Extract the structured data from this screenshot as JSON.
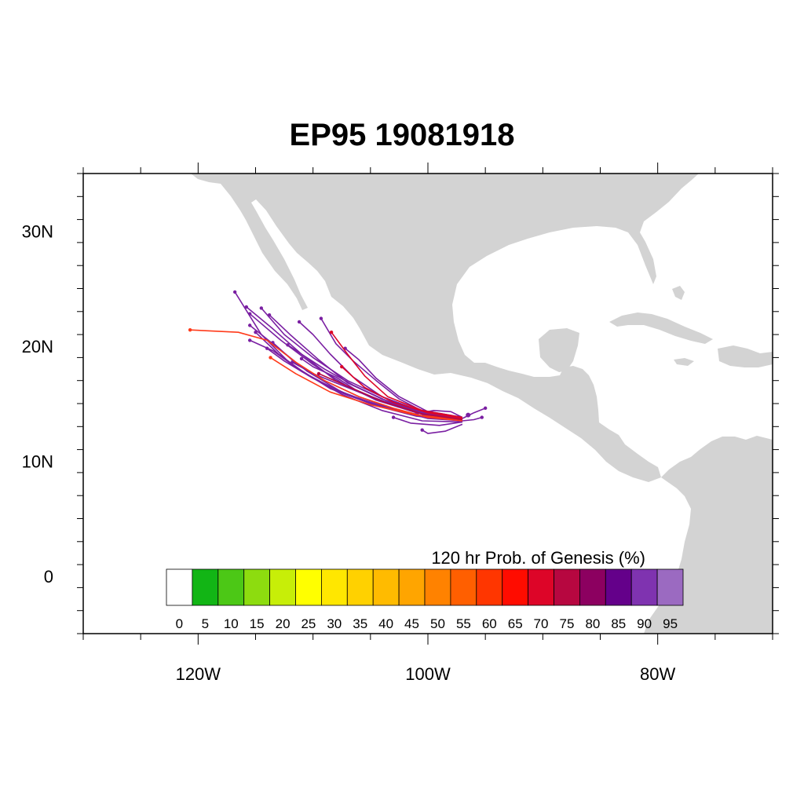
{
  "title": "EP95 19081918",
  "colors": {
    "land": "#d3d3d3",
    "ocean": "#ffffff",
    "frame": "#000000"
  },
  "axes": {
    "lon_range": [
      -130,
      -70
    ],
    "lat_range": [
      -5,
      35
    ],
    "lat_ticks": [
      {
        "value": 30,
        "label": "30N"
      },
      {
        "value": 20,
        "label": "20N"
      },
      {
        "value": 10,
        "label": "10N"
      },
      {
        "value": 0,
        "label": "0"
      }
    ],
    "lon_ticks": [
      {
        "value": -120,
        "label": "120W"
      },
      {
        "value": -100,
        "label": "100W"
      },
      {
        "value": -80,
        "label": "80W"
      }
    ]
  },
  "colorbar": {
    "title": "120 hr Prob. of Genesis (%)",
    "labels": [
      "0",
      "5",
      "10",
      "15",
      "20",
      "25",
      "30",
      "35",
      "40",
      "45",
      "50",
      "55",
      "60",
      "65",
      "70",
      "75",
      "80",
      "85",
      "90",
      "95"
    ],
    "colors": [
      "#ffffff",
      "#12b515",
      "#4cc816",
      "#8ddc0f",
      "#c7ee08",
      "#ffff00",
      "#ffe700",
      "#ffd100",
      "#ffbb00",
      "#ffa500",
      "#ff8200",
      "#ff5f00",
      "#ff3600",
      "#ff0c00",
      "#dd0528",
      "#b70740",
      "#8c0060",
      "#64008a",
      "#7f33b0",
      "#9b6ac1"
    ]
  },
  "tracks": {
    "start": [
      -96.5,
      14.0
    ],
    "members": [
      {
        "color": "#7a1fa2",
        "points": [
          [
            -97,
            13.8
          ],
          [
            -101,
            14.5
          ],
          [
            -104,
            15.6
          ],
          [
            -107,
            17.0
          ],
          [
            -110,
            19.0
          ],
          [
            -112.5,
            21.0
          ],
          [
            -114.5,
            23.3
          ]
        ]
      },
      {
        "color": "#7a1fa2",
        "points": [
          [
            -97,
            13.7
          ],
          [
            -100.5,
            14.2
          ],
          [
            -104,
            15.4
          ],
          [
            -107,
            16.8
          ],
          [
            -109.5,
            18.8
          ],
          [
            -112,
            21.0
          ],
          [
            -113.8,
            22.7
          ]
        ]
      },
      {
        "color": "#7a1fa2",
        "points": [
          [
            -97,
            13.6
          ],
          [
            -101,
            14.2
          ],
          [
            -104.5,
            15.3
          ],
          [
            -108,
            17.0
          ],
          [
            -111,
            19.3
          ],
          [
            -113.5,
            21.5
          ],
          [
            -115.8,
            23.4
          ]
        ]
      },
      {
        "color": "#7a1fa2",
        "points": [
          [
            -97,
            13.6
          ],
          [
            -100,
            14.0
          ],
          [
            -103.5,
            15.0
          ],
          [
            -107,
            16.5
          ],
          [
            -110,
            18.4
          ],
          [
            -112.8,
            20.5
          ],
          [
            -115.5,
            22.8
          ]
        ]
      },
      {
        "color": "#7a1fa2",
        "points": [
          [
            -97,
            13.5
          ],
          [
            -101,
            14.0
          ],
          [
            -105,
            15.0
          ],
          [
            -108.5,
            16.3
          ],
          [
            -112,
            18.5
          ],
          [
            -114.5,
            21.0
          ],
          [
            -116.8,
            24.7
          ]
        ]
      },
      {
        "color": "#7a1fa2",
        "points": [
          [
            -97,
            13.6
          ],
          [
            -100,
            13.9
          ],
          [
            -103,
            14.9
          ],
          [
            -106,
            16.0
          ],
          [
            -108,
            17.3
          ],
          [
            -110,
            18.2
          ],
          [
            -111,
            18.9
          ]
        ]
      },
      {
        "color": "#7a1fa2",
        "points": [
          [
            -97,
            13.5
          ],
          [
            -101,
            13.9
          ],
          [
            -104.5,
            14.8
          ],
          [
            -107.5,
            16.0
          ],
          [
            -110.5,
            17.8
          ],
          [
            -113,
            19.8
          ],
          [
            -115.5,
            21.8
          ]
        ]
      },
      {
        "color": "#7a1fa2",
        "points": [
          [
            -97,
            13.5
          ],
          [
            -100,
            13.7
          ],
          [
            -103,
            14.5
          ],
          [
            -106,
            15.6
          ],
          [
            -109,
            17.0
          ],
          [
            -111.5,
            18.5
          ],
          [
            -113.5,
            20.3
          ]
        ]
      },
      {
        "color": "#7a1fa2",
        "points": [
          [
            -97,
            13.4
          ],
          [
            -100.5,
            13.5
          ],
          [
            -104,
            14.4
          ],
          [
            -107.5,
            15.8
          ],
          [
            -110.5,
            17.5
          ],
          [
            -113,
            19.3
          ],
          [
            -115,
            21.2
          ]
        ]
      },
      {
        "color": "#7a1fa2",
        "points": [
          [
            -97,
            13.6
          ],
          [
            -100,
            14.1
          ],
          [
            -102.5,
            15.4
          ],
          [
            -104.5,
            17.0
          ],
          [
            -106.5,
            18.7
          ],
          [
            -108,
            20.2
          ],
          [
            -109.3,
            22.4
          ]
        ]
      },
      {
        "color": "#7a1fa2",
        "points": [
          [
            -97,
            13.7
          ],
          [
            -100,
            14.3
          ],
          [
            -102.5,
            15.6
          ],
          [
            -104.5,
            17.2
          ],
          [
            -106,
            18.8
          ],
          [
            -107.2,
            19.8
          ]
        ]
      },
      {
        "color": "#7a1fa2",
        "points": [
          [
            -97,
            13.2
          ],
          [
            -98.5,
            12.6
          ],
          [
            -100,
            12.4
          ],
          [
            -100.5,
            12.7
          ]
        ]
      },
      {
        "color": "#7a1fa2",
        "points": [
          [
            -97,
            13.4
          ],
          [
            -99,
            13.1
          ],
          [
            -101.5,
            13.3
          ],
          [
            -103,
            13.8
          ]
        ]
      },
      {
        "color": "#7a1fa2",
        "points": [
          [
            -97,
            13.8
          ],
          [
            -98,
            14.3
          ],
          [
            -99.5,
            14.4
          ],
          [
            -101,
            14.1
          ]
        ]
      },
      {
        "color": "#7a1fa2",
        "points": [
          [
            -97,
            13.7
          ],
          [
            -96,
            14.2
          ],
          [
            -95,
            14.6
          ]
        ]
      },
      {
        "color": "#7a1fa2",
        "points": [
          [
            -97,
            13.5
          ],
          [
            -96,
            13.6
          ],
          [
            -95.3,
            13.8
          ]
        ]
      },
      {
        "color": "#7a1fa2",
        "points": [
          [
            -97,
            13.6
          ],
          [
            -101,
            14.0
          ],
          [
            -104.5,
            14.9
          ],
          [
            -108,
            16.2
          ],
          [
            -111,
            17.8
          ],
          [
            -113.5,
            19.6
          ],
          [
            -115.5,
            20.5
          ]
        ]
      },
      {
        "color": "#7a1fa2",
        "points": [
          [
            -97,
            13.8
          ],
          [
            -101,
            14.4
          ],
          [
            -104,
            15.6
          ],
          [
            -106.5,
            17.3
          ],
          [
            -108.5,
            19.3
          ],
          [
            -110,
            21.0
          ],
          [
            -111.2,
            22.1
          ]
        ]
      },
      {
        "color": "#7a1fa2",
        "points": [
          [
            -97,
            13.6
          ],
          [
            -100.5,
            14.1
          ],
          [
            -103.5,
            15.2
          ],
          [
            -106.5,
            16.6
          ],
          [
            -109,
            18.0
          ],
          [
            -111,
            19.3
          ],
          [
            -112.2,
            20.1
          ]
        ]
      },
      {
        "color": "#7a1fa2",
        "points": [
          [
            -97,
            13.5
          ],
          [
            -100,
            13.8
          ],
          [
            -103.5,
            14.6
          ],
          [
            -107,
            15.8
          ],
          [
            -110,
            17.2
          ],
          [
            -112.5,
            18.7
          ],
          [
            -114,
            19.8
          ]
        ]
      },
      {
        "color": "#7a1fa2",
        "points": [
          [
            -97,
            13.7
          ],
          [
            -101,
            14.3
          ],
          [
            -104.5,
            15.4
          ],
          [
            -107.5,
            16.6
          ],
          [
            -110,
            17.6
          ],
          [
            -111.8,
            18.6
          ]
        ]
      },
      {
        "color": "#ff3a1a",
        "points": [
          [
            -97,
            13.5
          ],
          [
            -100,
            13.8
          ],
          [
            -103,
            14.6
          ],
          [
            -106,
            15.6
          ],
          [
            -109,
            17.0
          ],
          [
            -111.5,
            18.6
          ],
          [
            -114,
            20.5
          ],
          [
            -116.5,
            21.2
          ],
          [
            -120.7,
            21.4
          ]
        ]
      },
      {
        "color": "#ff3a1a",
        "points": [
          [
            -97,
            13.6
          ],
          [
            -101,
            14.0
          ],
          [
            -105,
            14.9
          ],
          [
            -108.5,
            16.0
          ],
          [
            -111.5,
            17.6
          ],
          [
            -113.7,
            19.0
          ]
        ]
      },
      {
        "color": "#dd0528",
        "points": [
          [
            -97,
            13.8
          ],
          [
            -100.5,
            14.4
          ],
          [
            -103.5,
            15.6
          ],
          [
            -105.5,
            17.4
          ],
          [
            -107,
            19.3
          ],
          [
            -108.4,
            21.2
          ]
        ]
      },
      {
        "color": "#dd0528",
        "points": [
          [
            -97,
            13.7
          ],
          [
            -100,
            14.2
          ],
          [
            -103,
            15.1
          ],
          [
            -105.5,
            16.4
          ],
          [
            -107.5,
            18.2
          ]
        ]
      },
      {
        "color": "#b70740",
        "points": [
          [
            -97,
            13.6
          ],
          [
            -100.5,
            14.1
          ],
          [
            -104,
            15.2
          ],
          [
            -107,
            16.5
          ],
          [
            -109.5,
            17.6
          ]
        ]
      }
    ]
  }
}
